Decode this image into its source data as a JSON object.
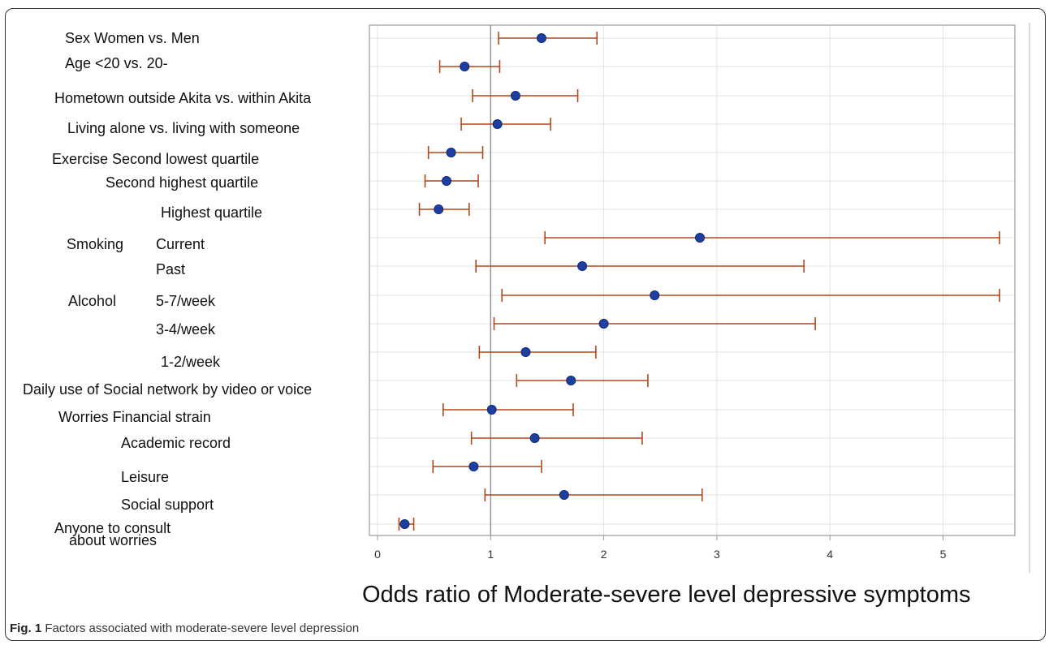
{
  "chart_data": {
    "type": "forest",
    "xlabel": "Odds ratio of Moderate-severe level depressive symptoms",
    "xlim": [
      0,
      5.55
    ],
    "xticks": [
      0,
      1,
      2,
      3,
      4,
      5
    ],
    "reference_line": 1,
    "grid": true,
    "colors": {
      "point": "#1f3fa0",
      "ci": "#b5451b",
      "grid": "#e3e3e3",
      "ref": "#888888",
      "axis": "#9a9a9a"
    },
    "rows": [
      {
        "labels": [
          "Sex  Women vs. Men"
        ],
        "or": 1.45,
        "lo": 1.07,
        "hi": 1.94
      },
      {
        "labels": [
          "Age <20 vs. 20-"
        ],
        "or": 0.77,
        "lo": 0.55,
        "hi": 1.08
      },
      {
        "labels": [
          "Hometown outside Akita vs. within Akita"
        ],
        "or": 1.22,
        "lo": 0.84,
        "hi": 1.77
      },
      {
        "labels": [
          "Living alone vs. living with someone"
        ],
        "or": 1.06,
        "lo": 0.74,
        "hi": 1.53
      },
      {
        "labels": [
          "Exercise Second lowest quartile"
        ],
        "or": 0.65,
        "lo": 0.45,
        "hi": 0.93
      },
      {
        "labels": [
          "Second highest quartile"
        ],
        "or": 0.61,
        "lo": 0.42,
        "hi": 0.89
      },
      {
        "labels": [
          "Highest quartile"
        ],
        "or": 0.54,
        "lo": 0.37,
        "hi": 0.81
      },
      {
        "labels": [
          "Smoking",
          "Current"
        ],
        "or": 2.85,
        "lo": 1.48,
        "hi": 5.5
      },
      {
        "labels": [
          "Past"
        ],
        "or": 1.81,
        "lo": 0.87,
        "hi": 3.77
      },
      {
        "labels": [
          "Alcohol",
          "5-7/week"
        ],
        "or": 2.45,
        "lo": 1.1,
        "hi": 5.5
      },
      {
        "labels": [
          "3-4/week"
        ],
        "or": 2.0,
        "lo": 1.03,
        "hi": 3.87
      },
      {
        "labels": [
          "1-2/week"
        ],
        "or": 1.31,
        "lo": 0.9,
        "hi": 1.93
      },
      {
        "labels": [
          "Daily use of Social network by video or voice"
        ],
        "or": 1.71,
        "lo": 1.23,
        "hi": 2.39
      },
      {
        "labels": [
          "Worries  Financial strain"
        ],
        "or": 1.01,
        "lo": 0.58,
        "hi": 1.73
      },
      {
        "labels": [
          "Academic record"
        ],
        "or": 1.39,
        "lo": 0.83,
        "hi": 2.34
      },
      {
        "labels": [
          "Leisure"
        ],
        "or": 0.85,
        "lo": 0.49,
        "hi": 1.45
      },
      {
        "labels": [
          "Social support"
        ],
        "or": 1.65,
        "lo": 0.95,
        "hi": 2.87
      },
      {
        "labels": [
          "Anyone to consult",
          "about worries"
        ],
        "or": 0.24,
        "lo": 0.19,
        "hi": 0.32
      }
    ]
  },
  "caption": {
    "label": "Fig. 1",
    "text": "Factors associated with moderate-severe level depression"
  }
}
